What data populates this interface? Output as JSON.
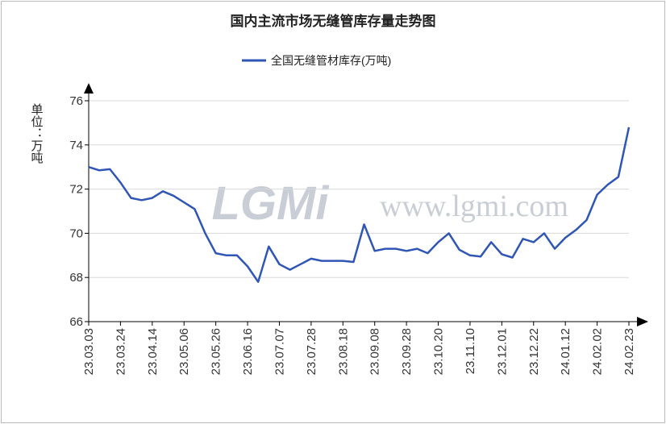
{
  "chart_data": {
    "type": "line",
    "title": "国内主流市场无缝管库存量走势图",
    "y_label": "单位：万吨",
    "watermark": [
      "LGMi",
      "www.lgmi.com"
    ],
    "categories": [
      "23.03.03",
      null,
      null,
      "23.03.24",
      null,
      null,
      "23.04.14",
      null,
      null,
      "23.05.06",
      null,
      null,
      "23.05.26",
      null,
      null,
      "23.06.16",
      null,
      null,
      "23.07.07",
      null,
      null,
      "23.07.28",
      null,
      null,
      "23.08.18",
      null,
      null,
      "23.09.08",
      null,
      null,
      "23.09.28",
      null,
      null,
      "23.10.20",
      null,
      null,
      "23.11.10",
      null,
      null,
      "23.12.01",
      null,
      null,
      "23.12.22",
      null,
      null,
      "24.01.12",
      null,
      null,
      "24.02.02",
      null,
      null,
      "24.02.23"
    ],
    "series": [
      {
        "name": "全国无缝管材库存(万吨)",
        "color": "#2f55b5",
        "values": [
          73.0,
          72.85,
          72.9,
          72.3,
          71.6,
          71.5,
          71.6,
          71.9,
          71.7,
          71.4,
          71.1,
          70.0,
          69.1,
          69.0,
          69.0,
          68.5,
          67.8,
          69.4,
          68.6,
          68.35,
          68.6,
          68.85,
          68.75,
          68.75,
          68.75,
          68.7,
          70.4,
          69.2,
          69.3,
          69.3,
          69.2,
          69.3,
          69.1,
          69.6,
          70.0,
          69.25,
          69.0,
          68.95,
          69.6,
          69.05,
          68.9,
          69.75,
          69.6,
          70.0,
          69.3,
          69.8,
          70.15,
          70.6,
          71.75,
          72.2,
          72.55,
          74.8
        ]
      }
    ],
    "ylim": [
      66,
      76
    ],
    "yticks": [
      66,
      68,
      70,
      72,
      74,
      76
    ],
    "grid": true
  }
}
